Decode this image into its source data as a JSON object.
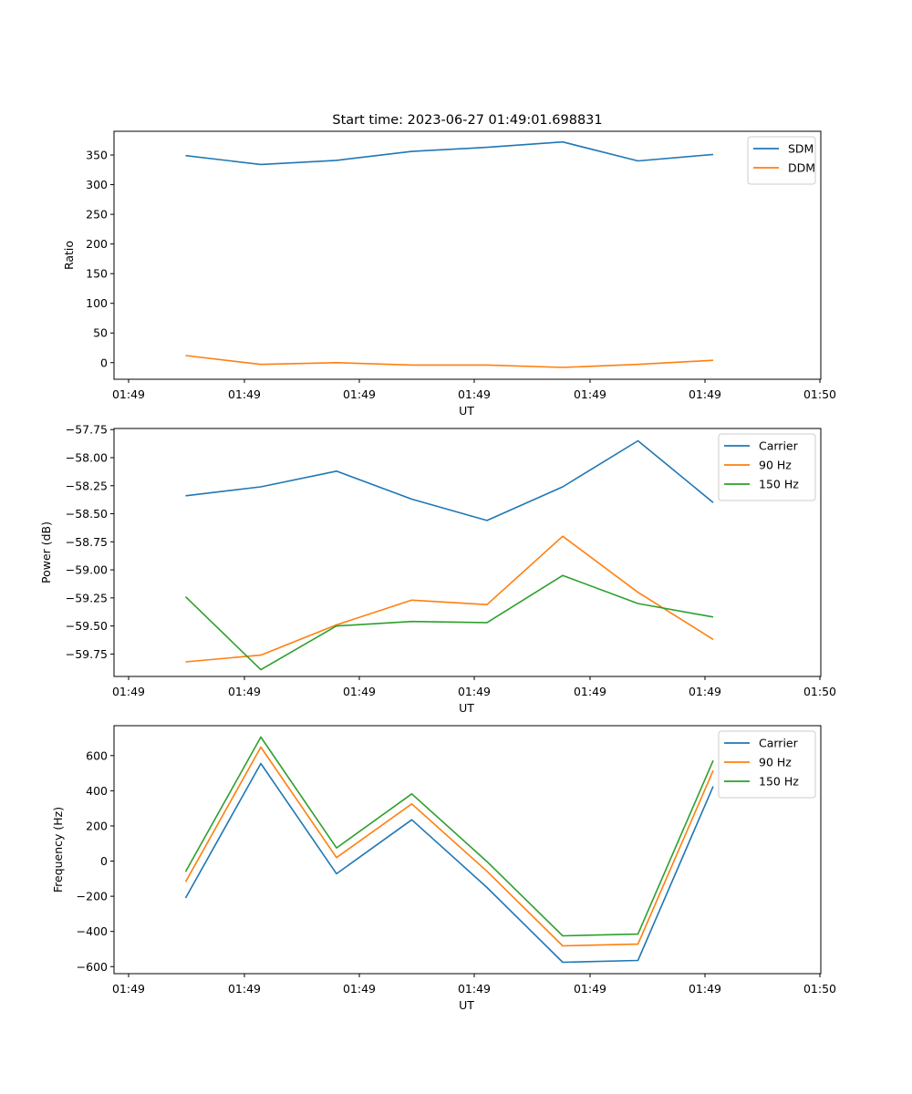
{
  "figure_title": "Start time: 2023-06-27 01:49:01.698831",
  "colors": {
    "c0": "#1f77b4",
    "c1": "#ff7f0e",
    "c2": "#2ca02c"
  },
  "chart_data": [
    {
      "type": "line",
      "title": "Start time: 2023-06-27 01:49:01.698831",
      "xlabel": "UT",
      "ylabel": "Ratio",
      "x_tick_labels": [
        "01:49",
        "01:49",
        "01:49",
        "01:49",
        "01:49",
        "01:49",
        "01:50"
      ],
      "ylim": [
        -28,
        390
      ],
      "y_ticks": [
        0,
        50,
        100,
        150,
        200,
        250,
        300,
        350
      ],
      "y_tick_labels": [
        "0",
        "50",
        "100",
        "150",
        "200",
        "250",
        "300",
        "350"
      ],
      "legend_position": "top-right",
      "series": [
        {
          "name": "SDM",
          "color": "#1f77b4",
          "values": [
            349,
            334,
            341,
            356,
            363,
            372,
            340,
            351
          ]
        },
        {
          "name": "DDM",
          "color": "#ff7f0e",
          "values": [
            12,
            -3,
            0,
            -4,
            -4,
            -8,
            -3,
            4
          ]
        }
      ]
    },
    {
      "type": "line",
      "title": "",
      "xlabel": "UT",
      "ylabel": "Power (dB)",
      "x_tick_labels": [
        "01:49",
        "01:49",
        "01:49",
        "01:49",
        "01:49",
        "01:49",
        "01:50"
      ],
      "ylim": [
        -59.95,
        -57.74
      ],
      "y_ticks": [
        -59.75,
        -59.5,
        -59.25,
        -59.0,
        -58.75,
        -58.5,
        -58.25,
        -58.0,
        -57.75
      ],
      "y_tick_labels": [
        "−59.75",
        "−59.50",
        "−59.25",
        "−59.00",
        "−58.75",
        "−58.50",
        "−58.25",
        "−58.00",
        "−57.75"
      ],
      "legend_position": "top-right",
      "series": [
        {
          "name": "Carrier",
          "color": "#1f77b4",
          "values": [
            -58.34,
            -58.26,
            -58.12,
            -58.37,
            -58.56,
            -58.26,
            -57.85,
            -58.4
          ]
        },
        {
          "name": "90 Hz",
          "color": "#ff7f0e",
          "values": [
            -59.82,
            -59.76,
            -59.49,
            -59.27,
            -59.31,
            -58.7,
            -59.2,
            -59.62
          ]
        },
        {
          "name": "150 Hz",
          "color": "#2ca02c",
          "values": [
            -59.24,
            -59.89,
            -59.5,
            -59.46,
            -59.47,
            -59.05,
            -59.3,
            -59.42
          ]
        }
      ]
    },
    {
      "type": "line",
      "title": "",
      "xlabel": "UT",
      "ylabel": "Frequency (Hz)",
      "x_tick_labels": [
        "01:49",
        "01:49",
        "01:49",
        "01:49",
        "01:49",
        "01:49",
        "01:50"
      ],
      "ylim": [
        -640,
        770
      ],
      "y_ticks": [
        -600,
        -400,
        -200,
        0,
        200,
        400,
        600
      ],
      "y_tick_labels": [
        "−600",
        "−400",
        "−200",
        "0",
        "200",
        "400",
        "600"
      ],
      "legend_position": "top-right",
      "series": [
        {
          "name": "Carrier",
          "color": "#1f77b4",
          "values": [
            -210,
            555,
            -72,
            235,
            -150,
            -575,
            -565,
            425
          ]
        },
        {
          "name": "90 Hz",
          "color": "#ff7f0e",
          "values": [
            -118,
            648,
            20,
            325,
            -58,
            -482,
            -472,
            515
          ]
        },
        {
          "name": "150 Hz",
          "color": "#2ca02c",
          "values": [
            -60,
            705,
            75,
            382,
            -3,
            -425,
            -415,
            572
          ]
        }
      ]
    }
  ]
}
